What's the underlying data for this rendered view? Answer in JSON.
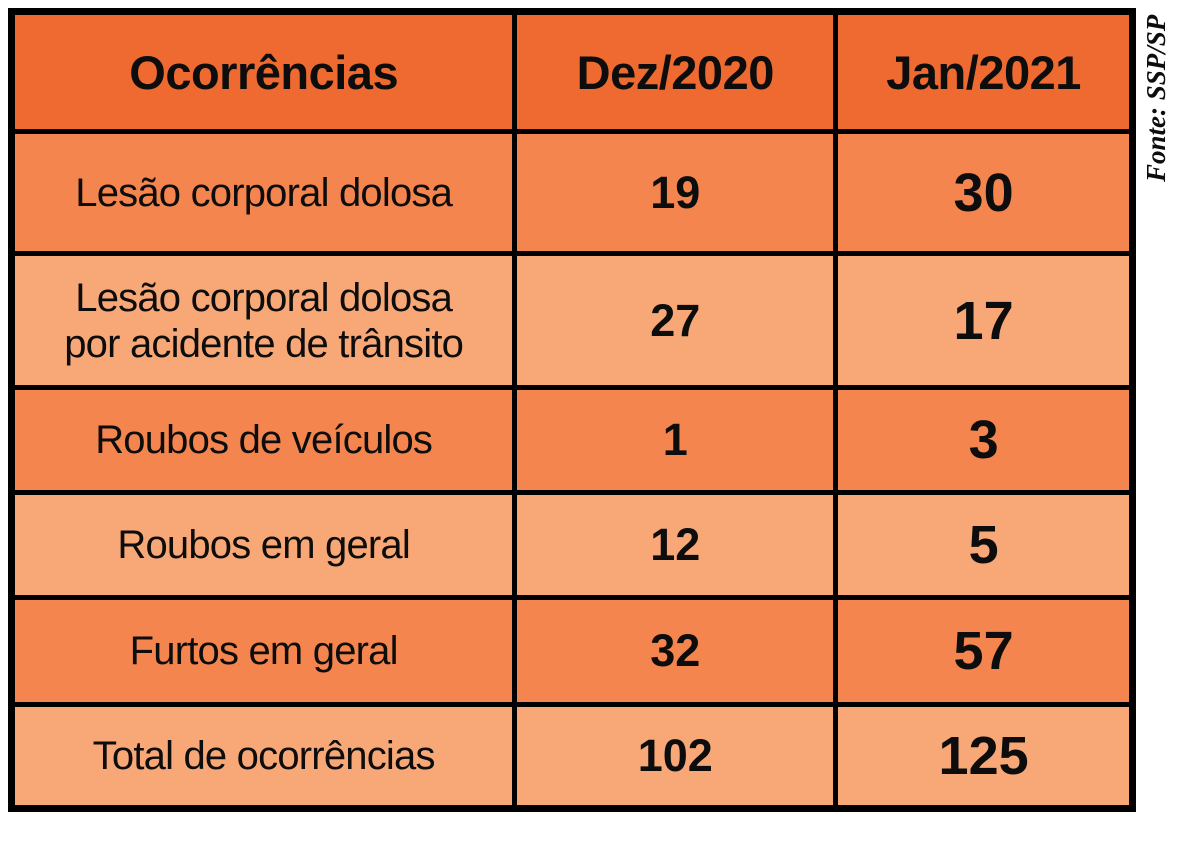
{
  "source_note": "Fonte: SSP/SP",
  "colors": {
    "header_bg": "#EE6A30",
    "row_medium_bg": "#F4854E",
    "row_light_bg": "#F8A877",
    "border": "#000000",
    "text": "#0D0D0D",
    "page_bg": "#FFFFFF"
  },
  "chart_data": {
    "type": "table",
    "title": "",
    "columns": [
      "Ocorrências",
      "Dez/2020",
      "Jan/2021"
    ],
    "rows": [
      {
        "label": "Lesão corporal dolosa",
        "dez_2020": 19,
        "jan_2021": 30,
        "shade": "medium"
      },
      {
        "label": "Lesão corporal dolosa\npor acidente de trânsito",
        "dez_2020": 27,
        "jan_2021": 17,
        "shade": "light"
      },
      {
        "label": "Roubos de veículos",
        "dez_2020": 1,
        "jan_2021": 3,
        "shade": "medium"
      },
      {
        "label": "Roubos em geral",
        "dez_2020": 12,
        "jan_2021": 5,
        "shade": "light"
      },
      {
        "label": "Furtos em geral",
        "dez_2020": 32,
        "jan_2021": 57,
        "shade": "medium"
      },
      {
        "label": "Total de ocorrências",
        "dez_2020": 102,
        "jan_2021": 125,
        "shade": "light"
      }
    ]
  }
}
